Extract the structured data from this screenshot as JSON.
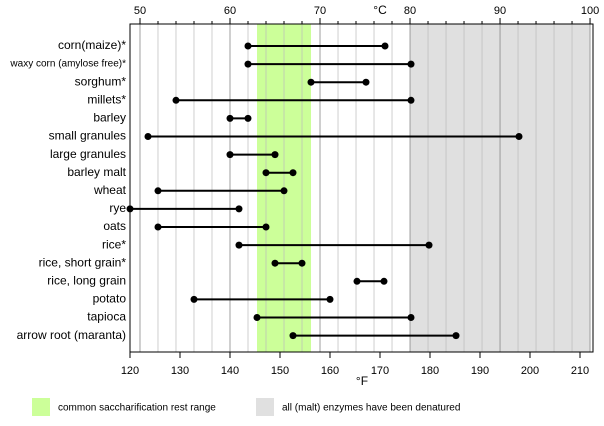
{
  "chart_data": {
    "type": "dumbbell",
    "x2_label": "°C",
    "x_label": "°F",
    "categories": [
      "corn(maize)*",
      "waxy corn (amylose free)*",
      "sorghum*",
      "millets*",
      "barley",
      "small granules",
      "large granules",
      "barley malt",
      "wheat",
      "rye",
      "oats",
      "rice*",
      "rice, short grain*",
      "rice, long grain",
      "potato",
      "tapioca",
      "arrow root (maranta)"
    ],
    "start": [
      143.6,
      143.6,
      156.2,
      129.2,
      140,
      123.6,
      140,
      147.2,
      125.6,
      120,
      125.6,
      141.8,
      149,
      165.4,
      132.8,
      145.4,
      152.6
    ],
    "end": [
      171,
      176.2,
      167.2,
      176.2,
      143.6,
      197.8,
      149,
      152.6,
      150.8,
      141.8,
      147.2,
      179.8,
      154.4,
      170.8,
      160,
      176.2,
      185.2
    ],
    "color": "#000000",
    "xlim": [
      120,
      212.6
    ],
    "xticks": [
      120,
      130,
      140,
      150,
      160,
      170,
      180,
      190,
      200,
      210
    ],
    "x2lim": [
      48.89,
      100.33
    ],
    "x2ticks": [
      50,
      60,
      70,
      80,
      90,
      100
    ],
    "x2minor": [
      52,
      54,
      56,
      58,
      62,
      64,
      66,
      68,
      72,
      74,
      76,
      78,
      82,
      84,
      86,
      88,
      92,
      94,
      96,
      98
    ],
    "bands": [
      {
        "label": "common saccharification rest range",
        "color": "#ccff99",
        "range": [
          63,
          69
        ]
      },
      {
        "label": "all (malt) enzymes have been denatured",
        "color": "#e0e0e0",
        "range": [
          80,
          100
        ]
      }
    ]
  }
}
